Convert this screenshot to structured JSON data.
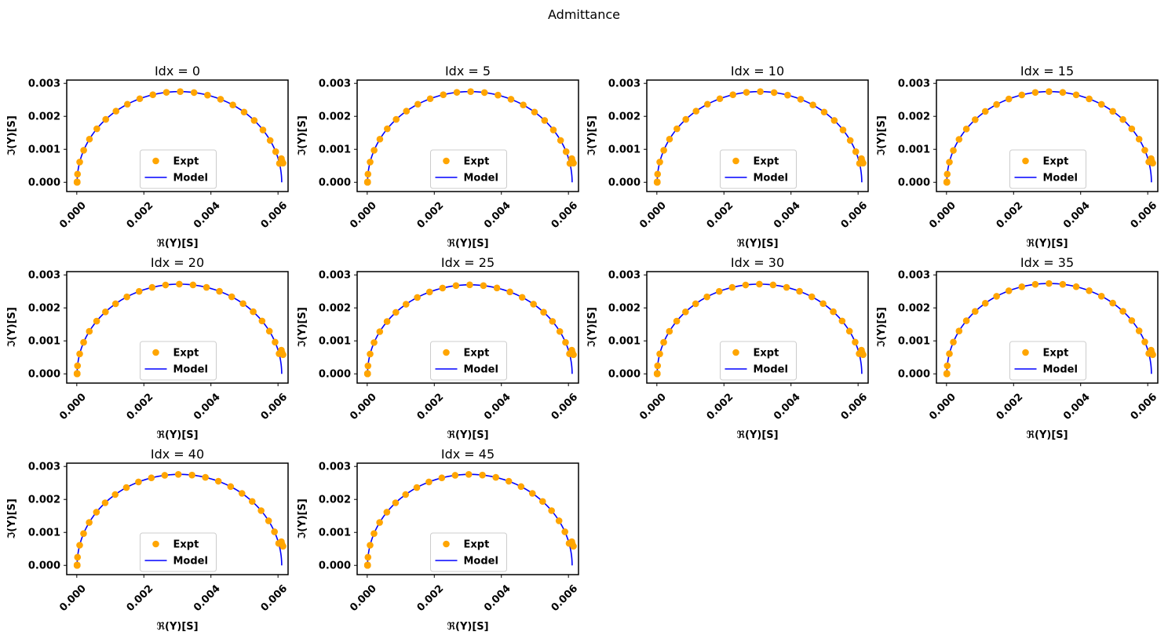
{
  "figure": {
    "suptitle": "Admittance"
  },
  "legend": {
    "expt_label": "Expt",
    "model_label": "Model",
    "placement": "lower center"
  },
  "colors": {
    "expt": "#FFA500",
    "model": "#0000FF",
    "axes": "#000000",
    "text": "#000000"
  },
  "axes_common": {
    "xlabel": "ℜ(Y)[S]",
    "ylabel": "ℑ(Y)[S]",
    "xlim": [
      -0.0003,
      0.0063
    ],
    "ylim": [
      -0.00028,
      0.0031
    ],
    "xticks": [
      0.0,
      0.002,
      0.004,
      0.006
    ],
    "xtick_labels": [
      "0.000",
      "0.002",
      "0.004",
      "0.006"
    ],
    "yticks": [
      0.0,
      0.001,
      0.002,
      0.003
    ],
    "ytick_labels": [
      "0.000",
      "0.001",
      "0.002",
      "0.003"
    ],
    "grid": false
  },
  "chart_data": [
    {
      "type": "scatter",
      "title": "Idx = 0",
      "circle": {
        "center": 0.00306,
        "radius": 0.00305,
        "peak": 0.00275
      },
      "expt_theta_range_deg": [
        0,
        168
      ],
      "series": [
        {
          "name": "Expt",
          "kind": "scatter"
        },
        {
          "name": "Model",
          "kind": "line"
        }
      ]
    },
    {
      "type": "scatter",
      "title": "Idx = 5",
      "circle": {
        "center": 0.00306,
        "radius": 0.00305,
        "peak": 0.00275
      },
      "expt_theta_range_deg": [
        0,
        168
      ],
      "series": [
        {
          "name": "Expt",
          "kind": "scatter"
        },
        {
          "name": "Model",
          "kind": "line"
        }
      ]
    },
    {
      "type": "scatter",
      "title": "Idx = 10",
      "circle": {
        "center": 0.00306,
        "radius": 0.00305,
        "peak": 0.00275
      },
      "expt_theta_range_deg": [
        0,
        168
      ],
      "series": [
        {
          "name": "Expt",
          "kind": "scatter"
        },
        {
          "name": "Model",
          "kind": "line"
        }
      ]
    },
    {
      "type": "scatter",
      "title": "Idx = 15",
      "circle": {
        "center": 0.00306,
        "radius": 0.00305,
        "peak": 0.00275
      },
      "expt_theta_range_deg": [
        0,
        167
      ],
      "series": [
        {
          "name": "Expt",
          "kind": "scatter"
        },
        {
          "name": "Model",
          "kind": "line"
        }
      ]
    },
    {
      "type": "scatter",
      "title": "Idx = 20",
      "circle": {
        "center": 0.00306,
        "radius": 0.00305,
        "peak": 0.00272
      },
      "expt_theta_range_deg": [
        0,
        167
      ],
      "series": [
        {
          "name": "Expt",
          "kind": "scatter"
        },
        {
          "name": "Model",
          "kind": "line"
        }
      ]
    },
    {
      "type": "scatter",
      "title": "Idx = 25",
      "circle": {
        "center": 0.00306,
        "radius": 0.00305,
        "peak": 0.0027
      },
      "expt_theta_range_deg": [
        0,
        167
      ],
      "series": [
        {
          "name": "Expt",
          "kind": "scatter"
        },
        {
          "name": "Model",
          "kind": "line"
        }
      ]
    },
    {
      "type": "scatter",
      "title": "Idx = 30",
      "circle": {
        "center": 0.00306,
        "radius": 0.00305,
        "peak": 0.00272
      },
      "expt_theta_range_deg": [
        0,
        167
      ],
      "series": [
        {
          "name": "Expt",
          "kind": "scatter"
        },
        {
          "name": "Model",
          "kind": "line"
        }
      ]
    },
    {
      "type": "scatter",
      "title": "Idx = 35",
      "circle": {
        "center": 0.00306,
        "radius": 0.00305,
        "peak": 0.00274
      },
      "expt_theta_range_deg": [
        0,
        167
      ],
      "series": [
        {
          "name": "Expt",
          "kind": "scatter"
        },
        {
          "name": "Model",
          "kind": "line"
        }
      ]
    },
    {
      "type": "scatter",
      "title": "Idx = 40",
      "circle": {
        "center": 0.00306,
        "radius": 0.00305,
        "peak": 0.00276
      },
      "expt_theta_range_deg": [
        0,
        166
      ],
      "series": [
        {
          "name": "Expt",
          "kind": "scatter"
        },
        {
          "name": "Model",
          "kind": "line"
        }
      ]
    },
    {
      "type": "scatter",
      "title": "Idx = 45",
      "circle": {
        "center": 0.00306,
        "radius": 0.00305,
        "peak": 0.00276
      },
      "expt_theta_range_deg": [
        0,
        166
      ],
      "series": [
        {
          "name": "Expt",
          "kind": "scatter"
        },
        {
          "name": "Model",
          "kind": "line"
        }
      ]
    }
  ]
}
